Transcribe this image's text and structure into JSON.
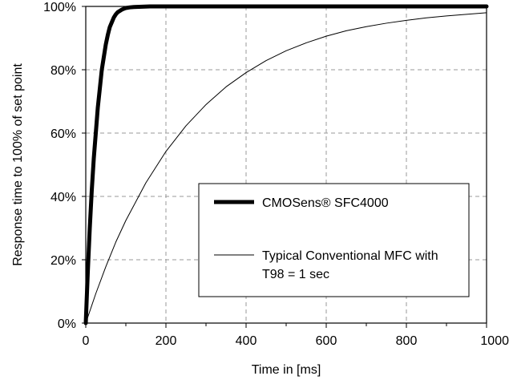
{
  "chart_data": {
    "type": "line",
    "title": "",
    "xlabel": "Time in [ms]",
    "ylabel": "Response time to 100% of set point",
    "xlim": [
      0,
      1000
    ],
    "ylim": [
      0,
      100
    ],
    "x_ticks": [
      0,
      200,
      400,
      600,
      800,
      1000
    ],
    "x_tick_labels": [
      "0",
      "200",
      "400",
      "600",
      "800",
      "1000"
    ],
    "y_ticks": [
      0,
      20,
      40,
      60,
      80,
      100
    ],
    "y_tick_labels": [
      "0%",
      "20%",
      "40%",
      "60%",
      "80%",
      "100%"
    ],
    "grid": true,
    "legend_position": "lower-right",
    "series": [
      {
        "name": "CMOSens® SFC4000",
        "color": "#000000",
        "line_weight": "bold",
        "x": [
          0,
          5,
          10,
          15,
          20,
          25,
          30,
          35,
          40,
          45,
          50,
          55,
          60,
          65,
          70,
          75,
          80,
          90,
          100,
          110,
          120,
          140,
          160,
          200,
          300,
          400,
          600,
          800,
          1000
        ],
        "y": [
          0,
          16,
          30,
          42,
          52,
          60,
          68,
          74,
          80,
          84,
          88,
          91,
          93.5,
          95,
          96.5,
          97.5,
          98.2,
          99,
          99.5,
          99.7,
          99.8,
          99.9,
          100,
          100,
          100,
          100,
          100,
          100,
          100
        ]
      },
      {
        "name": "Typical Conventional MFC with T98 = 1 sec",
        "color": "#000000",
        "line_weight": "thin",
        "x": [
          0,
          25,
          50,
          75,
          100,
          150,
          200,
          250,
          300,
          350,
          400,
          450,
          500,
          550,
          600,
          650,
          700,
          750,
          800,
          850,
          900,
          950,
          1000
        ],
        "y": [
          0,
          9.3,
          17.8,
          25.6,
          32.4,
          44.3,
          54.2,
          62.3,
          69.0,
          74.6,
          79.1,
          82.9,
          86.0,
          88.5,
          90.6,
          92.3,
          93.6,
          94.7,
          95.6,
          96.4,
          97.0,
          97.5,
          98.0
        ]
      }
    ],
    "legend_labels": [
      {
        "lines": [
          "CMOSens® SFC4000"
        ]
      },
      {
        "lines": [
          "Typical Conventional MFC with",
          "T98 = 1 sec"
        ]
      }
    ]
  }
}
